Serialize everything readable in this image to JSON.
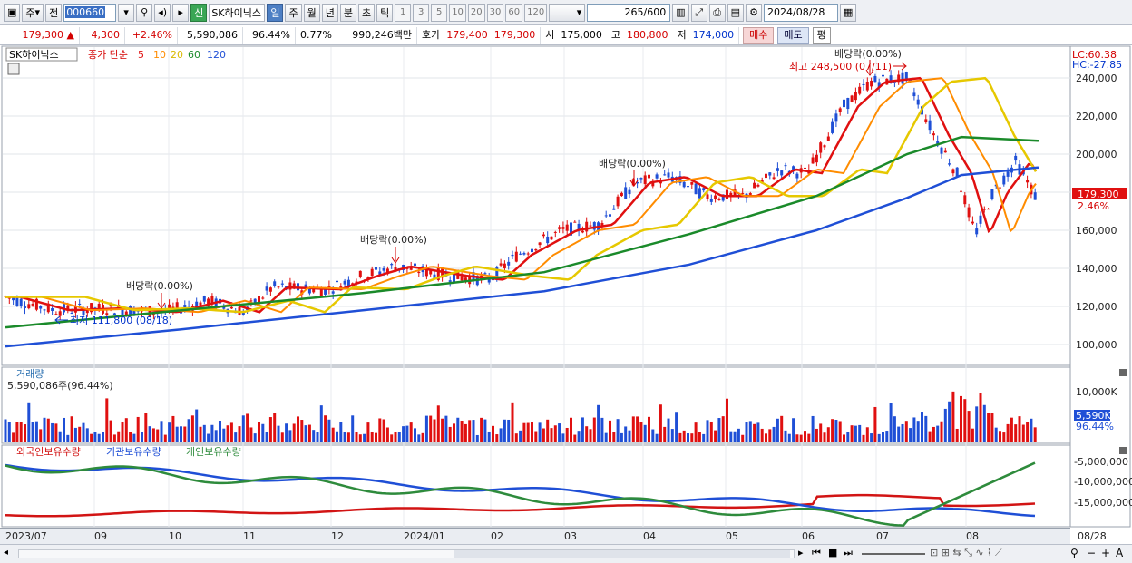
{
  "toolbar": {
    "period_type": "주",
    "prev_label": "전",
    "stock_code": "000660",
    "new_badge": "신",
    "stock_name": "SK하이닉스",
    "tabs": [
      "일",
      "주",
      "월",
      "년",
      "분",
      "초",
      "틱"
    ],
    "active_tab": "일",
    "intervals": [
      "1",
      "3",
      "5",
      "10",
      "20",
      "30",
      "60",
      "120"
    ],
    "count": "265",
    "count_total": "/600",
    "date": "2024/08/28"
  },
  "quote": {
    "price": "179,300",
    "change": "4,300",
    "change_pct": "+2.46%",
    "volume": "5,590,086",
    "volume_ratio": "96.44%",
    "turnover_ratio": "0.77%",
    "trade_value": "990,246백만",
    "bid_label": "호가",
    "bid": "179,400",
    "ask": "179,300",
    "open_label": "시",
    "open": "175,000",
    "high_label": "고",
    "high": "180,800",
    "low_label": "저",
    "low": "174,000",
    "buy_label": "매수",
    "sell_label": "매도",
    "pin_label": "평"
  },
  "price_panel": {
    "name_label": "SK하이닉스",
    "ma_label": "종가 단순",
    "ma_periods": [
      "5",
      "10",
      "20",
      "60",
      "120"
    ],
    "ma_colors": [
      "#e01010",
      "#ff8c00",
      "#e6c800",
      "#1a8a2a",
      "#1f4fd6"
    ],
    "lc": "LC:60.38",
    "hc": "HC:-27.85",
    "y_ticks": [
      "240,000",
      "220,000",
      "200,000",
      "180,000",
      "160,000",
      "140,000",
      "120,000",
      "100,000"
    ],
    "current_price_tag": "179,300",
    "current_pct_tag": "2.46%",
    "annotations": {
      "div1": "배당락(0.00%)",
      "div2": "배당락(0.00%)",
      "div3": "배당락(0.00%)",
      "div4": "배당락(0.00%)",
      "high": "최고 248,500 (07/11)",
      "low": "최저 111,800 (08/18)"
    }
  },
  "volume_panel": {
    "title": "거래량",
    "value": "5,590,086주(96.44%)",
    "y_tick": "10,000K",
    "tag": "5,590K",
    "tag_pct": "96.44%"
  },
  "holdings_panel": {
    "series": [
      "외국인보유수량",
      "기관보유수량",
      "개인보유수량"
    ],
    "colors": [
      "#d21414",
      "#1f4fd6",
      "#2e8b3c"
    ],
    "y_ticks": [
      "-5,000,000",
      "-10,000,000",
      "-15,000,000"
    ]
  },
  "x_axis": [
    "2023/07",
    "09",
    "10",
    "11",
    "12",
    "2024/01",
    "02",
    "03",
    "04",
    "05",
    "06",
    "07",
    "08",
    "08/28"
  ]
}
